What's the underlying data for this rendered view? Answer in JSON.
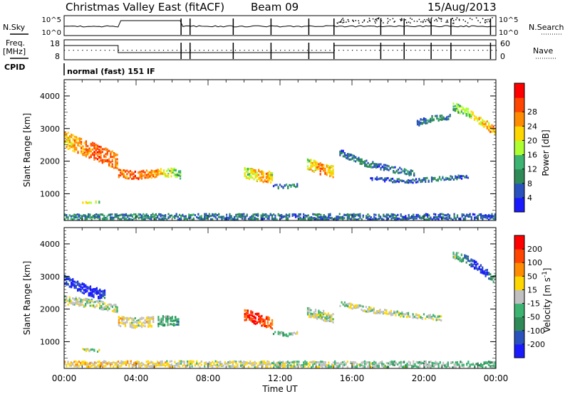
{
  "header": {
    "title": "Christmas Valley East (fitACF)",
    "beam": "Beam 09",
    "date": "15/Aug/2013"
  },
  "left_labels": {
    "nsky": "N.Sky",
    "freq": "Freq.",
    "mhz": "[MHz]",
    "cpid": "CPID"
  },
  "right_labels": {
    "nsearch": "N.Search",
    "nave": "Nave"
  },
  "sky_panel": {
    "left_ticks": [
      "10^5",
      "10^0"
    ],
    "right_ticks": [
      "10^5",
      "10^0"
    ]
  },
  "freq_panel": {
    "left_ticks": [
      "18",
      "8"
    ],
    "right_ticks": [
      "60",
      "0"
    ]
  },
  "cpid_text": "normal (fast) 151 IF",
  "x_axis": {
    "label": "Time UT",
    "ticks": [
      "00:00",
      "04:00",
      "08:00",
      "12:00",
      "16:00",
      "20:00",
      "00:00"
    ]
  },
  "colors": {
    "power_scale": [
      "#1a1aff",
      "#2a52be",
      "#2e8b57",
      "#3cb371",
      "#adff2f",
      "#ffd700",
      "#ff8c00",
      "#ff4500",
      "#ff0000"
    ],
    "velocity_scale": [
      "#1a1aff",
      "#2a52be",
      "#2e8b57",
      "#3cb371",
      "#c0c0c0",
      "#ffd700",
      "#ff8c00",
      "#ff4500",
      "#ff0000"
    ]
  },
  "chart_data": [
    {
      "type": "heatmap",
      "panel": "power",
      "ylabel": "Slant Range [km]",
      "ylim": [
        180,
        4500
      ],
      "yticks": [
        "1000",
        "2000",
        "3000",
        "4000"
      ],
      "xlim": [
        0,
        24
      ],
      "colorbar": {
        "label": "Power [dB]",
        "ticks": [
          "4",
          "8",
          "12",
          "16",
          "20",
          "24",
          "28"
        ]
      },
      "bands": [
        {
          "t": [
            0.0,
            1.0,
            2.0,
            3.0
          ],
          "r": [
            2700,
            2450,
            2250,
            2000
          ],
          "w": 500,
          "c": [
            5,
            6,
            7,
            6
          ]
        },
        {
          "t": [
            3.0,
            4.0,
            5.0,
            5.5
          ],
          "r": [
            1650,
            1600,
            1650,
            1700
          ],
          "w": 250,
          "c": [
            6,
            7,
            6,
            5
          ]
        },
        {
          "t": [
            5.5,
            6.0,
            6.5
          ],
          "r": [
            1650,
            1700,
            1600
          ],
          "w": 250,
          "c": [
            5,
            4,
            3
          ]
        },
        {
          "t": [
            10.0,
            10.6,
            11.2,
            11.6
          ],
          "r": [
            1700,
            1600,
            1550,
            1500
          ],
          "w": 350,
          "c": [
            4,
            5,
            6,
            4
          ]
        },
        {
          "t": [
            11.6,
            12.4,
            13.0
          ],
          "r": [
            1250,
            1250,
            1300
          ],
          "w": 120,
          "c": [
            1,
            2,
            1
          ]
        },
        {
          "t": [
            13.5,
            14.2,
            15.0
          ],
          "r": [
            1950,
            1800,
            1700
          ],
          "w": 350,
          "c": [
            4,
            6,
            5
          ]
        },
        {
          "t": [
            15.3,
            16.5,
            18.0,
            19.5
          ],
          "r": [
            2300,
            2000,
            1800,
            1650
          ],
          "w": 180,
          "c": [
            1,
            2,
            1,
            2
          ]
        },
        {
          "t": [
            17.0,
            19.0,
            21.0,
            22.5
          ],
          "r": [
            1500,
            1400,
            1500,
            1550
          ],
          "w": 120,
          "c": [
            1,
            1,
            2,
            1
          ]
        },
        {
          "t": [
            19.6,
            20.5,
            21.5
          ],
          "r": [
            3200,
            3350,
            3400
          ],
          "w": 180,
          "c": [
            1,
            2,
            1
          ]
        },
        {
          "t": [
            21.6,
            22.5,
            23.3,
            24.0
          ],
          "r": [
            3700,
            3500,
            3200,
            2900
          ],
          "w": 250,
          "c": [
            3,
            4,
            5,
            6
          ]
        },
        {
          "t": [
            1.0,
            2.0
          ],
          "r": [
            780,
            760
          ],
          "w": 80,
          "c": [
            5,
            4
          ]
        },
        {
          "t": [
            0.0,
            24.0
          ],
          "r": [
            320,
            320
          ],
          "w": 180,
          "c": [
            2,
            1
          ]
        }
      ]
    },
    {
      "type": "heatmap",
      "panel": "velocity",
      "ylabel": "Slant Range [km]",
      "ylim": [
        180,
        4500
      ],
      "yticks": [
        "1000",
        "2000",
        "3000",
        "4000"
      ],
      "xlim": [
        0,
        24
      ],
      "colorbar": {
        "label": "Velocity [m s^-1]",
        "ticks": [
          "200",
          "100",
          "50",
          "15",
          "-15",
          "-50",
          "-100",
          "-200"
        ]
      },
      "bands": [
        {
          "t": [
            0.0,
            0.8,
            1.6,
            2.3
          ],
          "r": [
            2950,
            2700,
            2550,
            2450
          ],
          "w": 300,
          "c": [
            1,
            0,
            0,
            1
          ]
        },
        {
          "t": [
            0.0,
            1.5,
            3.0
          ],
          "r": [
            2300,
            2200,
            2050
          ],
          "w": 250,
          "c": [
            4,
            4,
            4
          ]
        },
        {
          "t": [
            3.0,
            4.0,
            5.0
          ],
          "r": [
            1650,
            1600,
            1650
          ],
          "w": 300,
          "c": [
            5,
            4,
            5
          ]
        },
        {
          "t": [
            5.2,
            5.8,
            6.4
          ],
          "r": [
            1650,
            1700,
            1600
          ],
          "w": 300,
          "c": [
            3,
            3,
            2
          ]
        },
        {
          "t": [
            10.0,
            10.6,
            11.2,
            11.6
          ],
          "r": [
            1850,
            1750,
            1650,
            1550
          ],
          "w": 350,
          "c": [
            7,
            8,
            7,
            6
          ]
        },
        {
          "t": [
            11.6,
            12.4,
            13.0
          ],
          "r": [
            1300,
            1250,
            1300
          ],
          "w": 100,
          "c": [
            3,
            3,
            4
          ]
        },
        {
          "t": [
            13.5,
            14.2,
            15.0
          ],
          "r": [
            1950,
            1850,
            1750
          ],
          "w": 300,
          "c": [
            4,
            4,
            4
          ]
        },
        {
          "t": [
            15.3,
            17.0,
            19.0,
            21.0
          ],
          "r": [
            2200,
            2000,
            1850,
            1750
          ],
          "w": 150,
          "c": [
            4,
            4,
            4,
            4
          ]
        },
        {
          "t": [
            21.6,
            22.5,
            23.3,
            24.0
          ],
          "r": [
            3700,
            3500,
            3200,
            2900
          ],
          "w": 250,
          "c": [
            4,
            1,
            0,
            4
          ]
        },
        {
          "t": [
            1.0,
            2.0
          ],
          "r": [
            780,
            760
          ],
          "w": 80,
          "c": [
            4,
            4
          ]
        },
        {
          "t": [
            0.0,
            24.0
          ],
          "r": [
            350,
            330
          ],
          "w": 180,
          "c": [
            5,
            3
          ]
        }
      ]
    }
  ]
}
